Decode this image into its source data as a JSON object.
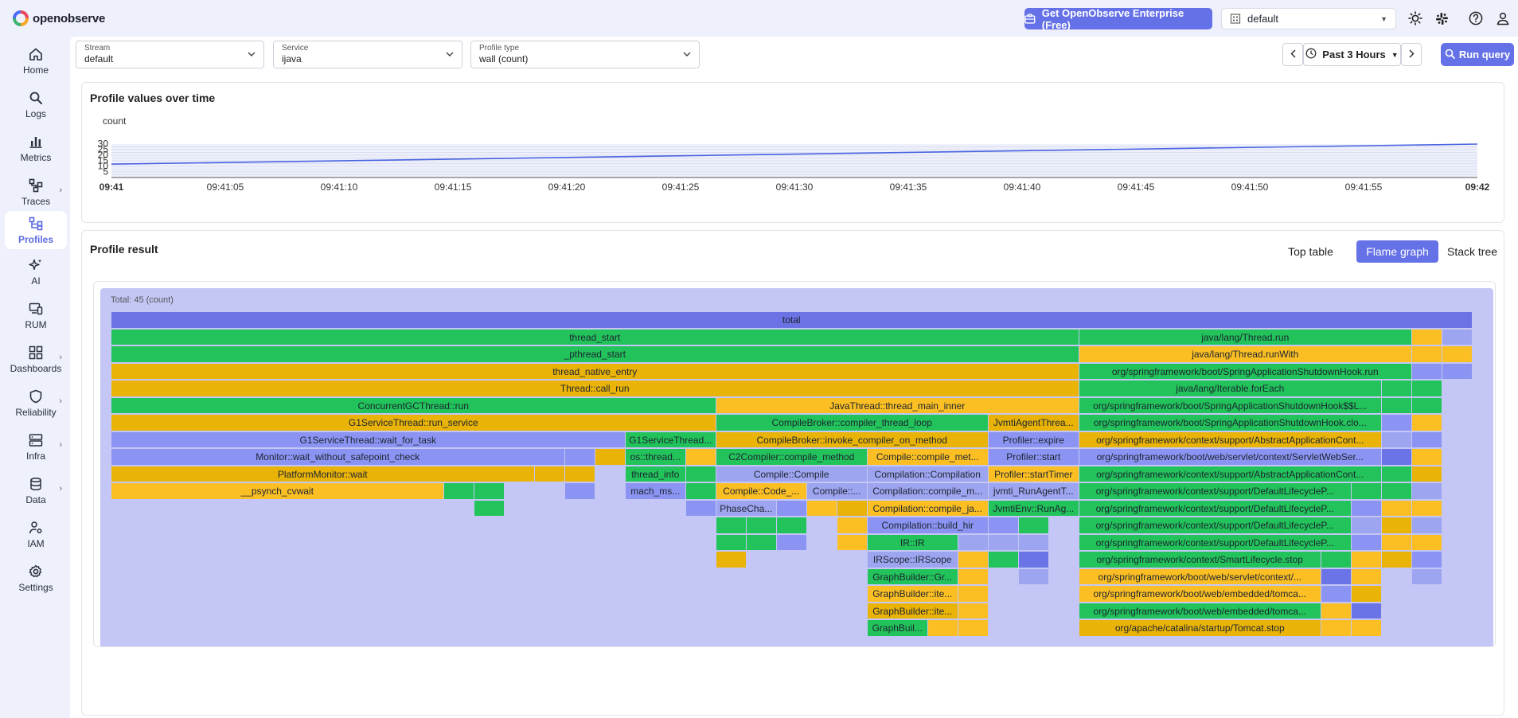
{
  "header": {
    "brand": "openobserve",
    "enterprise_label": "Get OpenObserve Enterprise (Free)",
    "org": "default"
  },
  "sidebar": {
    "items": [
      {
        "label": "Home",
        "icon": "home-icon"
      },
      {
        "label": "Logs",
        "icon": "search-icon"
      },
      {
        "label": "Metrics",
        "icon": "bar-chart-icon"
      },
      {
        "label": "Traces",
        "icon": "traces-icon"
      },
      {
        "label": "Profiles",
        "icon": "profiles-icon"
      },
      {
        "label": "AI",
        "icon": "sparkle-icon"
      },
      {
        "label": "RUM",
        "icon": "devices-icon"
      },
      {
        "label": "Dashboards",
        "icon": "dashboard-grid-icon"
      },
      {
        "label": "Reliability",
        "icon": "shield-icon"
      },
      {
        "label": "Infra",
        "icon": "server-icon"
      },
      {
        "label": "Data",
        "icon": "database-icon"
      },
      {
        "label": "IAM",
        "icon": "user-gear-icon"
      },
      {
        "label": "Settings",
        "icon": "gear-icon"
      }
    ]
  },
  "filters": {
    "stream": {
      "label": "Stream",
      "value": "default"
    },
    "service": {
      "label": "Service",
      "value": "ijava"
    },
    "profile_type": {
      "label": "Profile type",
      "value": "wall (count)"
    }
  },
  "time": {
    "range": "Past 3 Hours",
    "run_label": "Run query"
  },
  "chart_card": {
    "title": "Profile values over time"
  },
  "chart_data": {
    "type": "line",
    "title": "",
    "ylabel": "count",
    "yticks": [
      5,
      10,
      15,
      20,
      25,
      30
    ],
    "ylim": [
      0,
      30
    ],
    "xticks": [
      "09:41",
      "09:41:05",
      "09:41:10",
      "09:41:15",
      "09:41:20",
      "09:41:25",
      "09:41:30",
      "09:41:35",
      "09:41:40",
      "09:41:45",
      "09:41:50",
      "09:41:55",
      "09:42"
    ],
    "series": [
      {
        "x": [
          0,
          60
        ],
        "values": [
          12,
          30
        ]
      }
    ],
    "grid": true
  },
  "result": {
    "title": "Profile result",
    "tabs": [
      "Top table",
      "Flame graph",
      "Stack tree"
    ],
    "active_tab": "Flame graph",
    "total_label": "Total: 45 (count)"
  },
  "flame": {
    "rows": [
      [
        [
          "total",
          0,
          45,
          "total"
        ]
      ],
      [
        [
          "thread_start",
          0,
          32,
          "g"
        ],
        [
          "java/lang/Thread.run",
          32,
          11,
          "g"
        ],
        [
          "",
          43,
          1,
          "y"
        ],
        [
          "",
          44,
          1,
          "bl"
        ]
      ],
      [
        [
          "_pthread_start",
          0,
          32,
          "g"
        ],
        [
          "java/lang/Thread.runWith",
          32,
          11,
          "y"
        ],
        [
          "",
          43,
          1,
          "y"
        ],
        [
          "",
          44,
          1,
          "y"
        ]
      ],
      [
        [
          "thread_native_entry",
          0,
          32,
          "yd"
        ],
        [
          "org/springframework/boot/SpringApplicationShutdownHook.run",
          32,
          11,
          "g"
        ],
        [
          "",
          43,
          1,
          "b"
        ],
        [
          "",
          44,
          1,
          "b"
        ]
      ],
      [
        [
          "Thread::call_run",
          0,
          32,
          "yd"
        ],
        [
          "java/lang/Iterable.forEach",
          32,
          10,
          "g"
        ],
        [
          "",
          42,
          1,
          "g"
        ],
        [
          "",
          43,
          1,
          "g"
        ]
      ],
      [
        [
          "ConcurrentGCThread::run",
          0,
          20,
          "g"
        ],
        [
          "JavaThread::thread_main_inner",
          20,
          12,
          "y"
        ],
        [
          "org/springframework/boot/SpringApplicationShutdownHook$$L...",
          32,
          10,
          "g"
        ],
        [
          "",
          42,
          1,
          "g"
        ],
        [
          "",
          43,
          1,
          "g"
        ]
      ],
      [
        [
          "G1ServiceThread::run_service",
          0,
          20,
          "yd"
        ],
        [
          "CompileBroker::compiler_thread_loop",
          20,
          9,
          "g"
        ],
        [
          "JvmtiAgentThrea...",
          29,
          3,
          "yd"
        ],
        [
          "org/springframework/boot/SpringApplicationShutdownHook.clo...",
          32,
          10,
          "g"
        ],
        [
          "",
          42,
          1,
          "b"
        ],
        [
          "",
          43,
          1,
          "y"
        ]
      ],
      [
        [
          "G1ServiceThread::wait_for_task",
          0,
          17,
          "b"
        ],
        [
          "G1ServiceThread...",
          17,
          3,
          "g"
        ],
        [
          "CompileBroker::invoke_compiler_on_method",
          20,
          9,
          "yd"
        ],
        [
          "Profiler::expire",
          29,
          3,
          "b"
        ],
        [
          "org/springframework/context/support/AbstractApplicationCont...",
          32,
          10,
          "yd"
        ],
        [
          "",
          42,
          1,
          "bl"
        ],
        [
          "",
          43,
          1,
          "b"
        ]
      ],
      [
        [
          "Monitor::wait_without_safepoint_check",
          0,
          15,
          "b"
        ],
        [
          "",
          15,
          1,
          "b"
        ],
        [
          "",
          16,
          1,
          "yd"
        ],
        [
          "os::thread...",
          17,
          2,
          "g"
        ],
        [
          "",
          19,
          1,
          "y"
        ],
        [
          "C2Compiler::compile_method",
          20,
          5,
          "g"
        ],
        [
          "Compile::compile_met...",
          25,
          4,
          "y"
        ],
        [
          "Profiler::start",
          29,
          3,
          "b"
        ],
        [
          "org/springframework/boot/web/servlet/context/ServletWebSer...",
          32,
          10,
          "b"
        ],
        [
          "",
          42,
          1,
          "bd"
        ],
        [
          "",
          43,
          1,
          "y"
        ]
      ],
      [
        [
          "PlatformMonitor::wait",
          0,
          14,
          "yd"
        ],
        [
          "",
          14,
          1,
          "yd"
        ],
        [
          "",
          15,
          1,
          "yd"
        ],
        [
          "thread_info",
          17,
          2,
          "g"
        ],
        [
          "",
          19,
          1,
          "g"
        ],
        [
          "Compile::Compile",
          20,
          5,
          "bl"
        ],
        [
          "Compilation::Compilation",
          25,
          4,
          "bl"
        ],
        [
          "Profiler::startTimer",
          29,
          3,
          "y"
        ],
        [
          "org/springframework/context/support/AbstractApplicationCont...",
          32,
          10,
          "g"
        ],
        [
          "",
          42,
          1,
          "g"
        ],
        [
          "",
          43,
          1,
          "yd"
        ]
      ],
      [
        [
          "__psynch_cvwait",
          0,
          11,
          "y"
        ],
        [
          "",
          11,
          1,
          "g"
        ],
        [
          "",
          12,
          1,
          "g"
        ],
        [
          "",
          15,
          1,
          "b"
        ],
        [
          "mach_ms...",
          17,
          2,
          "b"
        ],
        [
          "",
          19,
          1,
          "g"
        ],
        [
          "Compile::Code_...",
          20,
          3,
          "y"
        ],
        [
          "Compile::...",
          23,
          2,
          "bl"
        ],
        [
          "Compilation::compile_m...",
          25,
          4,
          "bl"
        ],
        [
          "jvmti_RunAgentT...",
          29,
          3,
          "bl"
        ],
        [
          "org/springframework/context/support/DefaultLifecycleP...",
          32,
          9,
          "g"
        ],
        [
          "",
          41,
          1,
          "g"
        ],
        [
          "",
          42,
          1,
          "g"
        ],
        [
          "",
          43,
          1,
          "bl"
        ]
      ],
      [
        [
          "",
          12,
          1,
          "g"
        ],
        [
          "",
          19,
          1,
          "b"
        ],
        [
          "PhaseCha...",
          20,
          2,
          "bl"
        ],
        [
          "",
          22,
          1,
          "b"
        ],
        [
          "",
          23,
          1,
          "y"
        ],
        [
          "",
          24,
          1,
          "yd"
        ],
        [
          "Compilation::compile_ja...",
          25,
          4,
          "y"
        ],
        [
          "JvmtiEnv::RunAg...",
          29,
          3,
          "g"
        ],
        [
          "org/springframework/context/support/DefaultLifecycleP...",
          32,
          9,
          "g"
        ],
        [
          "",
          41,
          1,
          "b"
        ],
        [
          "",
          42,
          1,
          "y"
        ],
        [
          "",
          43,
          1,
          "y"
        ]
      ],
      [
        [
          "",
          20,
          1,
          "g"
        ],
        [
          "",
          21,
          1,
          "g"
        ],
        [
          "",
          22,
          1,
          "g"
        ],
        [
          "",
          24,
          1,
          "y"
        ],
        [
          "Compilation::build_hir",
          25,
          4,
          "b"
        ],
        [
          "",
          29,
          1,
          "b"
        ],
        [
          "",
          30,
          1,
          "g"
        ],
        [
          "org/springframework/context/support/DefaultLifecycleP...",
          32,
          9,
          "g"
        ],
        [
          "",
          41,
          1,
          "bl"
        ],
        [
          "",
          42,
          1,
          "yd"
        ],
        [
          "",
          43,
          1,
          "bl"
        ]
      ],
      [
        [
          "",
          20,
          1,
          "g"
        ],
        [
          "",
          21,
          1,
          "g"
        ],
        [
          "",
          22,
          1,
          "b"
        ],
        [
          "",
          24,
          1,
          "y"
        ],
        [
          "IR::IR",
          25,
          3,
          "g"
        ],
        [
          "",
          28,
          1,
          "bl"
        ],
        [
          "",
          29,
          1,
          "bl"
        ],
        [
          "",
          30,
          1,
          "bl"
        ],
        [
          "org/springframework/context/support/DefaultLifecycleP...",
          32,
          9,
          "g"
        ],
        [
          "",
          41,
          1,
          "b"
        ],
        [
          "",
          42,
          1,
          "y"
        ],
        [
          "",
          43,
          1,
          "y"
        ]
      ],
      [
        [
          "",
          20,
          1,
          "yd"
        ],
        [
          "IRScope::IRScope",
          25,
          3,
          "bl"
        ],
        [
          "",
          28,
          1,
          "y"
        ],
        [
          "",
          29,
          1,
          "g"
        ],
        [
          "",
          30,
          1,
          "bd"
        ],
        [
          "org/springframework/context/SmartLifecycle.stop",
          32,
          8,
          "g"
        ],
        [
          "",
          40,
          1,
          "g"
        ],
        [
          "",
          41,
          1,
          "y"
        ],
        [
          "",
          42,
          1,
          "yd"
        ],
        [
          "",
          43,
          1,
          "b"
        ]
      ],
      [
        [
          "GraphBuilder::Gr...",
          25,
          3,
          "g"
        ],
        [
          "",
          28,
          1,
          "y"
        ],
        [
          "",
          30,
          1,
          "bl"
        ],
        [
          "org/springframework/boot/web/servlet/context/...",
          32,
          8,
          "y"
        ],
        [
          "",
          40,
          1,
          "bd"
        ],
        [
          "",
          41,
          1,
          "y"
        ],
        [
          "",
          43,
          1,
          "bl"
        ]
      ],
      [
        [
          "GraphBuilder::ite...",
          25,
          3,
          "y"
        ],
        [
          "",
          28,
          1,
          "y"
        ],
        [
          "org/springframework/boot/web/embedded/tomca...",
          32,
          8,
          "y"
        ],
        [
          "",
          40,
          1,
          "b"
        ],
        [
          "",
          41,
          1,
          "yd"
        ]
      ],
      [
        [
          "GraphBuilder::ite...",
          25,
          3,
          "yd"
        ],
        [
          "",
          28,
          1,
          "y"
        ],
        [
          "org/springframework/boot/web/embedded/tomca...",
          32,
          8,
          "g"
        ],
        [
          "",
          40,
          1,
          "y"
        ],
        [
          "",
          41,
          1,
          "bd"
        ]
      ],
      [
        [
          "GraphBuil...",
          25,
          2,
          "g"
        ],
        [
          "",
          27,
          1,
          "y"
        ],
        [
          "",
          28,
          1,
          "y"
        ],
        [
          "org/apache/catalina/startup/Tomcat.stop",
          32,
          8,
          "yd"
        ],
        [
          "",
          40,
          1,
          "y"
        ],
        [
          "",
          41,
          1,
          "y"
        ]
      ]
    ]
  }
}
